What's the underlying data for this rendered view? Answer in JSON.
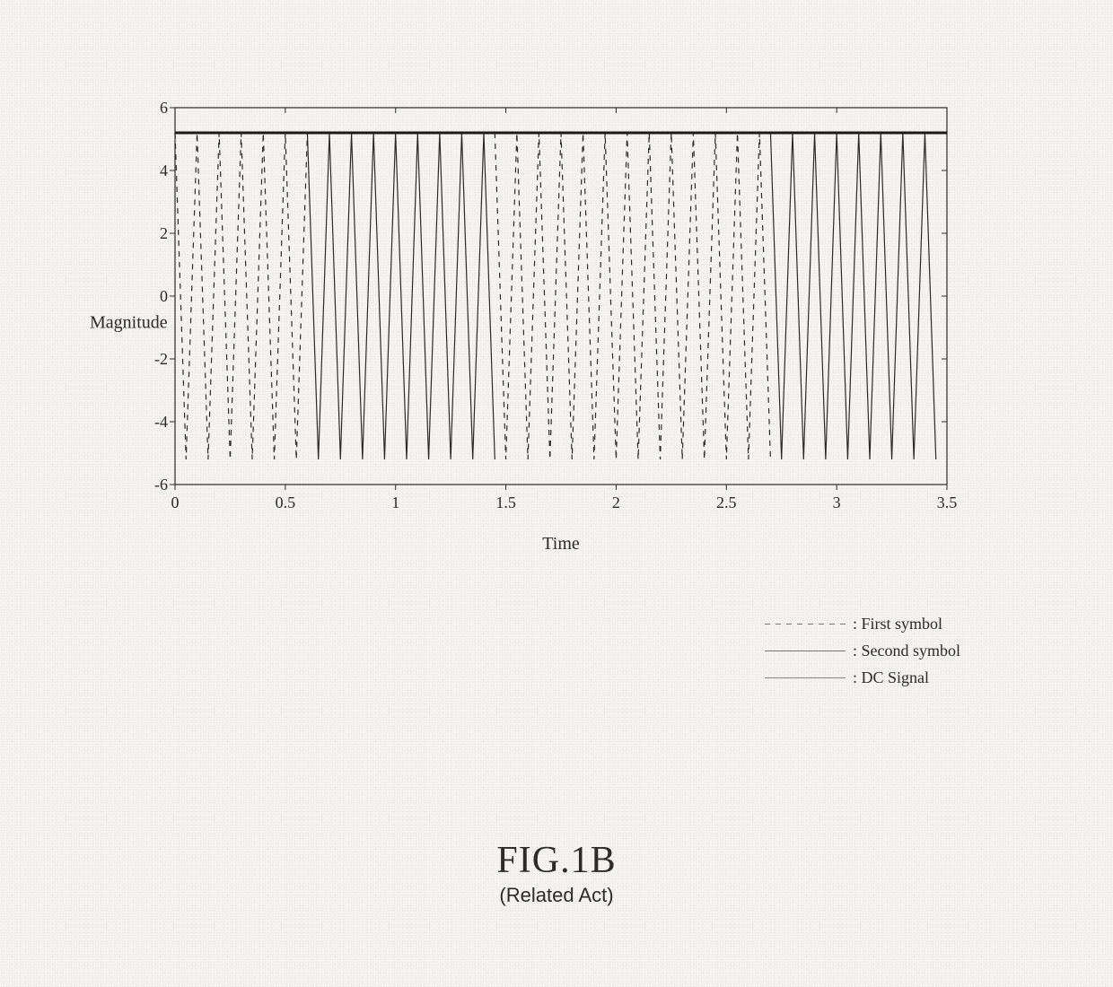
{
  "chart": {
    "type": "line",
    "background_color": "#f5f3f1",
    "plot_bg": "#f5f3f1",
    "axis_color": "#2b2b2b",
    "tick_color": "#2b2b2b",
    "grid_color": "#e0e0e0",
    "title_fontsize": 20,
    "label_fontsize": 20,
    "tick_fontsize": 18,
    "ylabel": "Magnitude",
    "xlabel": "Time",
    "xlim": [
      0,
      3.5
    ],
    "ylim": [
      -6,
      6
    ],
    "xtick_step": 0.5,
    "ytick_step": 2,
    "xticks": [
      0,
      0.5,
      1,
      1.5,
      2,
      2.5,
      3,
      3.5
    ],
    "yticks": [
      -6,
      -4,
      -2,
      0,
      2,
      4,
      6
    ],
    "dc_value": 5.2,
    "amplitude": 5.2,
    "samples_per_cycle": 2,
    "total_samples": 70,
    "sample_dt": 0.05,
    "series": {
      "first_symbol": {
        "label": "First symbol",
        "color": "#2b2b2b",
        "line_width": 1.2,
        "dash": "6,6",
        "ranges": [
          [
            0,
            0.6
          ],
          [
            1.45,
            2.7
          ]
        ]
      },
      "second_symbol": {
        "label": "Second symbol",
        "color": "#2b2b2b",
        "line_width": 1.2,
        "dash": "none",
        "ranges": [
          [
            0.6,
            1.45
          ],
          [
            2.7,
            3.45
          ]
        ]
      },
      "dc_signal": {
        "label": "DC Signal",
        "color": "#1a1a1a",
        "line_width": 3,
        "dash": "none"
      }
    }
  },
  "legend": {
    "items": [
      {
        "key": "first_symbol",
        "label": ": First symbol"
      },
      {
        "key": "second_symbol",
        "label": ": Second symbol"
      },
      {
        "key": "dc_signal",
        "label": ": DC Signal"
      }
    ]
  },
  "caption": {
    "figure": "FIG.1B",
    "subtitle": "(Related Act)"
  }
}
